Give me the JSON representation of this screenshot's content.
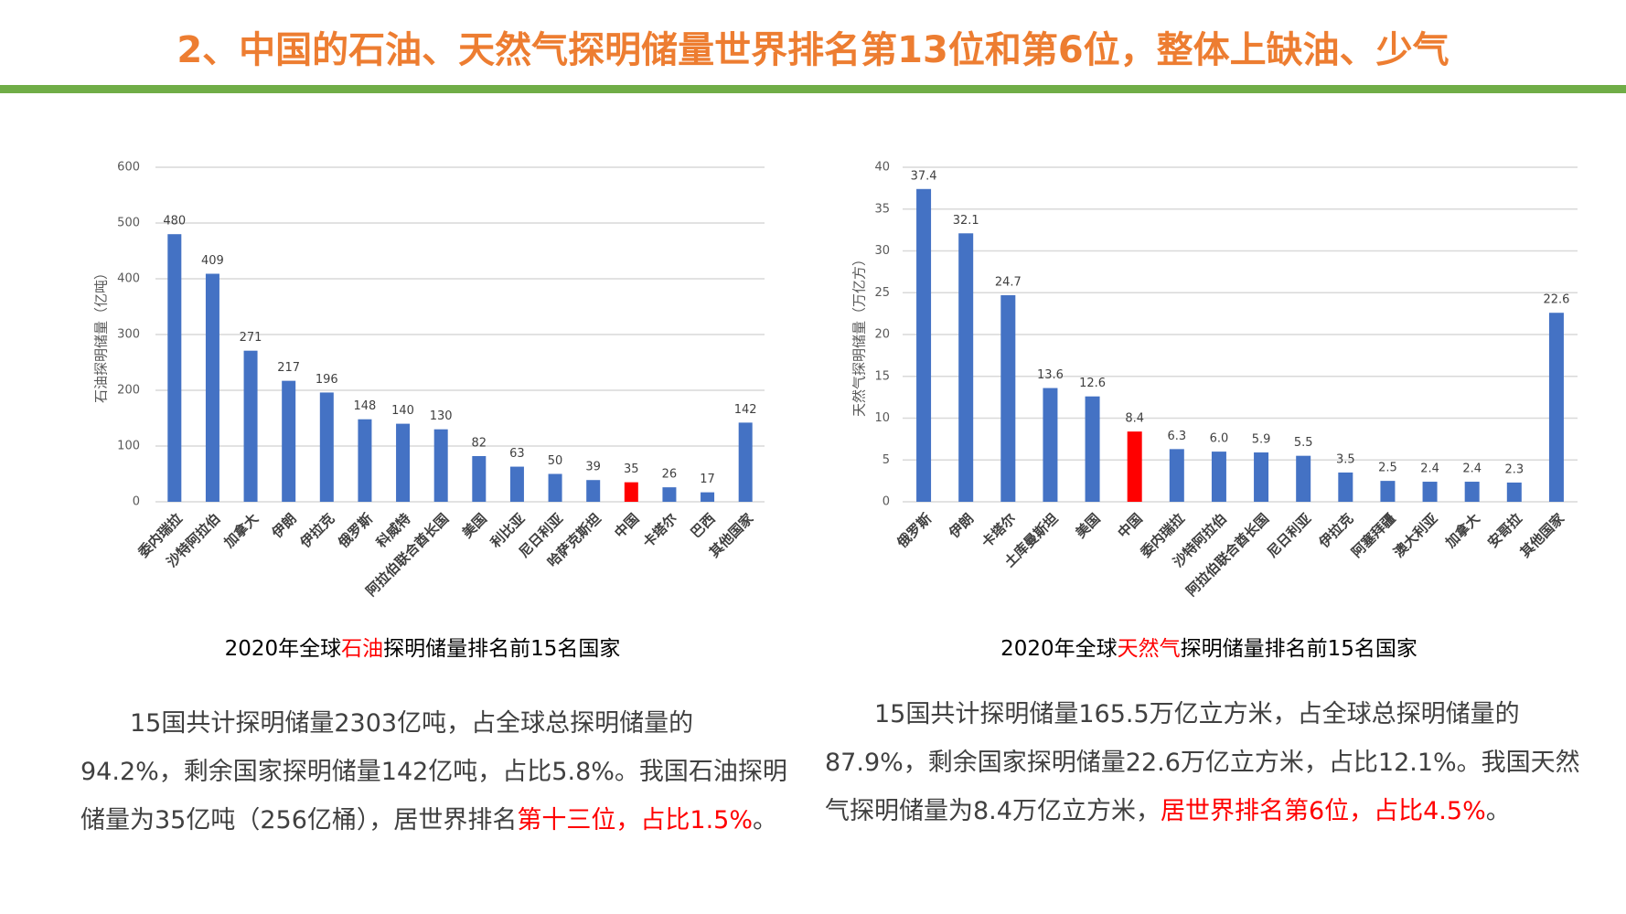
{
  "title": "2、中国的石油、天然气探明储量世界排名第13位和第6位，整体上缺油、少气",
  "chart_data": [
    {
      "type": "bar",
      "title": [
        {
          "text": "2020年全球"
        },
        {
          "text": "石油",
          "color": "#ff0000"
        },
        {
          "text": "探明储量排名前15名国家"
        }
      ],
      "ylabel": "石油探明储量（亿吨）",
      "categories": [
        "委内瑞拉",
        "沙特阿拉伯",
        "加拿大",
        "伊朗",
        "伊拉克",
        "俄罗斯",
        "科威特",
        "阿拉伯联合酋长国",
        "美国",
        "利比亚",
        "尼日利亚",
        "哈萨克斯坦",
        "中国",
        "卡塔尔",
        "巴西",
        "其他国家"
      ],
      "values": [
        480,
        409,
        271,
        217,
        196,
        148,
        140,
        130,
        82,
        63,
        50,
        39,
        35,
        26,
        17,
        142
      ],
      "colors": [
        "#4472c4",
        "#4472c4",
        "#4472c4",
        "#4472c4",
        "#4472c4",
        "#4472c4",
        "#4472c4",
        "#4472c4",
        "#4472c4",
        "#4472c4",
        "#4472c4",
        "#4472c4",
        "#ff0000",
        "#4472c4",
        "#4472c4",
        "#4472c4"
      ],
      "ylim": [
        0,
        600
      ],
      "yticks": [
        0,
        100,
        200,
        300,
        400,
        500,
        600
      ],
      "grid": true
    },
    {
      "type": "bar",
      "title": [
        {
          "text": "2020年全球"
        },
        {
          "text": "天然气",
          "color": "#ff0000"
        },
        {
          "text": "探明储量排名前15名国家"
        }
      ],
      "ylabel": "天然气探明储量（万亿方）",
      "categories": [
        "俄罗斯",
        "伊朗",
        "卡塔尔",
        "土库曼斯坦",
        "美国",
        "中国",
        "委内瑞拉",
        "沙特阿拉伯",
        "阿拉伯联合酋长国",
        "尼日利亚",
        "伊拉克",
        "阿塞拜疆",
        "澳大利亚",
        "加拿大",
        "安哥拉",
        "其他国家"
      ],
      "values": [
        37.4,
        32.1,
        24.7,
        13.6,
        12.6,
        8.4,
        6.3,
        6.0,
        5.9,
        5.5,
        3.5,
        2.5,
        2.4,
        2.4,
        2.3,
        22.6
      ],
      "value_labels": [
        "37.4",
        "32.1",
        "24.7",
        "13.6",
        "12.6",
        "8.4",
        "6.3",
        "6.0",
        "5.9",
        "5.5",
        "3.5",
        "2.5",
        "2.4",
        "2.4",
        "2.3",
        "22.6"
      ],
      "colors": [
        "#4472c4",
        "#4472c4",
        "#4472c4",
        "#4472c4",
        "#4472c4",
        "#ff0000",
        "#4472c4",
        "#4472c4",
        "#4472c4",
        "#4472c4",
        "#4472c4",
        "#4472c4",
        "#4472c4",
        "#4472c4",
        "#4472c4",
        "#4472c4"
      ],
      "ylim": [
        0,
        40
      ],
      "yticks": [
        0,
        5,
        10,
        15,
        20,
        25,
        30,
        35,
        40
      ],
      "grid": true
    }
  ],
  "paragraphs": [
    [
      {
        "text": "15国共计探明储量2303亿吨，占全球总探明储量的94.2%，剩余国家探明储量142亿吨，占比5.8%。我国石油探明储量为35亿吨（256亿桶），居世界排名"
      },
      {
        "text": "第十三位，占比1.5%",
        "color": "#ff0000"
      },
      {
        "text": "。"
      }
    ],
    [
      {
        "text": "15国共计探明储量165.5万亿立方米，占全球总探明储量的87.9%，剩余国家探明储量22.6万亿立方米，占比12.1%。我国天然气探明储量为8.4万亿立方米，"
      },
      {
        "text": "居世界排名第6位，占比4.5%",
        "color": "#ff0000"
      },
      {
        "text": "。"
      }
    ]
  ]
}
